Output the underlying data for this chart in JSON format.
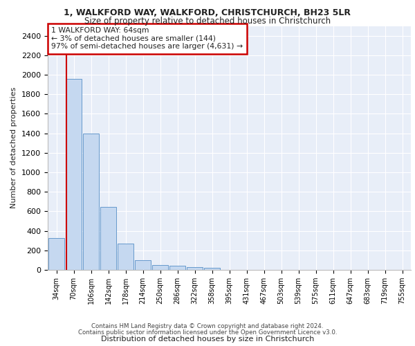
{
  "title_line1": "1, WALKFORD WAY, WALKFORD, CHRISTCHURCH, BH23 5LR",
  "title_line2": "Size of property relative to detached houses in Christchurch",
  "xlabel": "Distribution of detached houses by size in Christchurch",
  "ylabel": "Number of detached properties",
  "footer_line1": "Contains HM Land Registry data © Crown copyright and database right 2024.",
  "footer_line2": "Contains public sector information licensed under the Open Government Licence v3.0.",
  "bin_labels": [
    "34sqm",
    "70sqm",
    "106sqm",
    "142sqm",
    "178sqm",
    "214sqm",
    "250sqm",
    "286sqm",
    "322sqm",
    "358sqm",
    "395sqm",
    "431sqm",
    "467sqm",
    "503sqm",
    "539sqm",
    "575sqm",
    "611sqm",
    "647sqm",
    "683sqm",
    "719sqm",
    "755sqm"
  ],
  "bar_values": [
    325,
    1960,
    1400,
    645,
    270,
    100,
    48,
    40,
    28,
    20,
    0,
    0,
    0,
    0,
    0,
    0,
    0,
    0,
    0,
    0,
    0
  ],
  "bar_color": "#c5d8f0",
  "bar_edge_color": "#6699cc",
  "highlight_color": "#cc0000",
  "annotation_text": "1 WALKFORD WAY: 64sqm\n← 3% of detached houses are smaller (144)\n97% of semi-detached houses are larger (4,631) →",
  "annotation_box_color": "#ffffff",
  "annotation_box_edge_color": "#cc0000",
  "ylim": [
    0,
    2500
  ],
  "yticks": [
    0,
    200,
    400,
    600,
    800,
    1000,
    1200,
    1400,
    1600,
    1800,
    2000,
    2200,
    2400
  ],
  "plot_bg_color": "#e8eef8",
  "grid_color": "#ffffff",
  "font_color": "#222222",
  "red_line_x": 0.575
}
